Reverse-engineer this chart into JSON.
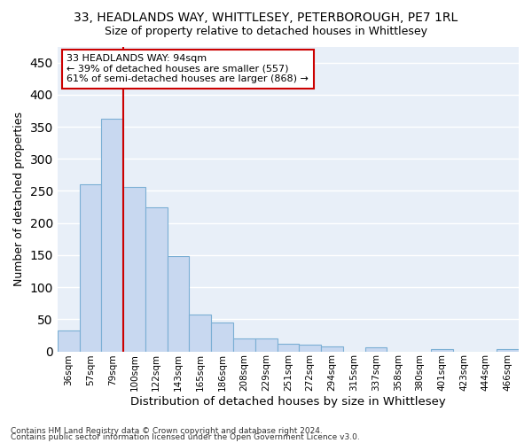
{
  "title": "33, HEADLANDS WAY, WHITTLESEY, PETERBOROUGH, PE7 1RL",
  "subtitle": "Size of property relative to detached houses in Whittlesey",
  "xlabel": "Distribution of detached houses by size in Whittlesey",
  "ylabel": "Number of detached properties",
  "footnote1": "Contains HM Land Registry data © Crown copyright and database right 2024.",
  "footnote2": "Contains public sector information licensed under the Open Government Licence v3.0.",
  "bar_labels": [
    "36sqm",
    "57sqm",
    "79sqm",
    "100sqm",
    "122sqm",
    "143sqm",
    "165sqm",
    "186sqm",
    "208sqm",
    "229sqm",
    "251sqm",
    "272sqm",
    "294sqm",
    "315sqm",
    "337sqm",
    "358sqm",
    "380sqm",
    "401sqm",
    "423sqm",
    "444sqm",
    "466sqm"
  ],
  "bar_values": [
    32,
    260,
    362,
    256,
    225,
    148,
    57,
    45,
    20,
    20,
    12,
    10,
    7,
    0,
    6,
    0,
    0,
    4,
    0,
    0,
    4
  ],
  "bar_color": "#c8d8f0",
  "bar_edge_color": "#7bafd4",
  "vline_color": "#cc0000",
  "annotation_text": "33 HEADLANDS WAY: 94sqm\n← 39% of detached houses are smaller (557)\n61% of semi-detached houses are larger (868) →",
  "annotation_box_facecolor": "#ffffff",
  "annotation_box_edgecolor": "#cc0000",
  "ylim": [
    0,
    475
  ],
  "yticks": [
    0,
    50,
    100,
    150,
    200,
    250,
    300,
    350,
    400,
    450
  ],
  "background_color": "#e8eff8",
  "grid_color": "#ffffff",
  "title_fontsize": 10,
  "subtitle_fontsize": 9,
  "axis_label_fontsize": 9,
  "tick_fontsize": 7.5,
  "footnote_fontsize": 6.5
}
